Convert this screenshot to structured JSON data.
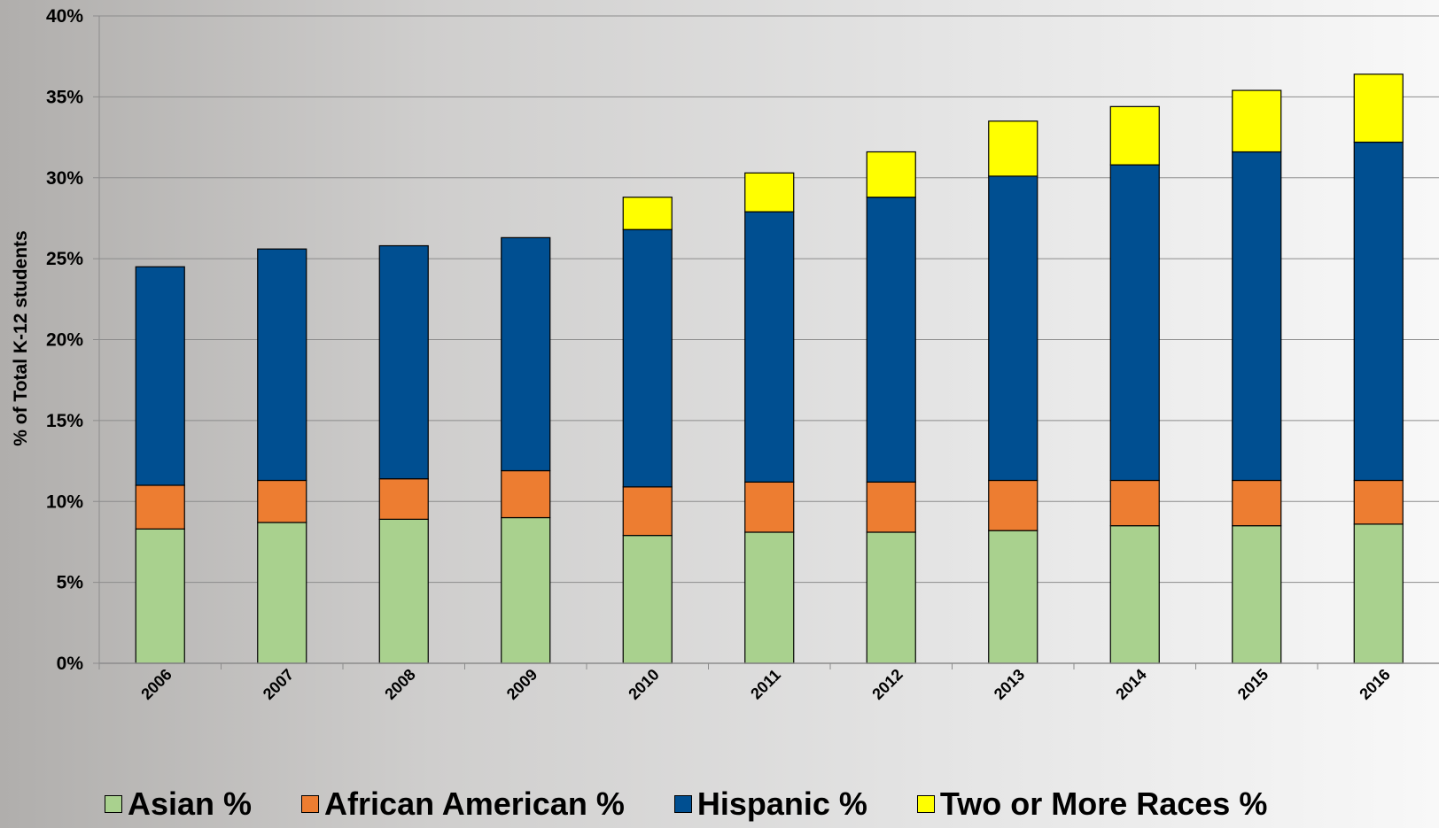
{
  "colors": {
    "asian": "#a9d18e",
    "african_american": "#ed7d31",
    "hispanic": "#004f91",
    "two_or_more": "#ffff00",
    "grid": "#8c8c8c",
    "bar_border": "#000000"
  },
  "chart_data": {
    "type": "bar",
    "stacked": true,
    "title": "",
    "xlabel": "",
    "ylabel": "% of Total K-12 students",
    "ylim": [
      0,
      40
    ],
    "yticks": [
      "0%",
      "5%",
      "10%",
      "15%",
      "20%",
      "25%",
      "30%",
      "35%",
      "40%"
    ],
    "grid": true,
    "legend_position": "bottom",
    "categories": [
      "2006",
      "2007",
      "2008",
      "2009",
      "2010",
      "2011",
      "2012",
      "2013",
      "2014",
      "2015",
      "2016"
    ],
    "series": [
      {
        "name": "Asian %",
        "color_key": "asian",
        "values": [
          8.3,
          8.7,
          8.9,
          9.0,
          7.9,
          8.1,
          8.1,
          8.2,
          8.5,
          8.5,
          8.6
        ]
      },
      {
        "name": "African American %",
        "color_key": "african_american",
        "values": [
          2.7,
          2.6,
          2.5,
          2.9,
          3.0,
          3.1,
          3.1,
          3.1,
          2.8,
          2.8,
          2.7
        ]
      },
      {
        "name": "Hispanic %",
        "color_key": "hispanic",
        "values": [
          13.5,
          14.3,
          14.4,
          14.4,
          15.9,
          16.7,
          17.6,
          18.8,
          19.5,
          20.3,
          20.9
        ]
      },
      {
        "name": "Two or More Races %",
        "color_key": "two_or_more",
        "values": [
          0,
          0,
          0,
          0,
          2.0,
          2.4,
          2.8,
          3.4,
          3.6,
          3.8,
          4.2
        ]
      }
    ]
  }
}
